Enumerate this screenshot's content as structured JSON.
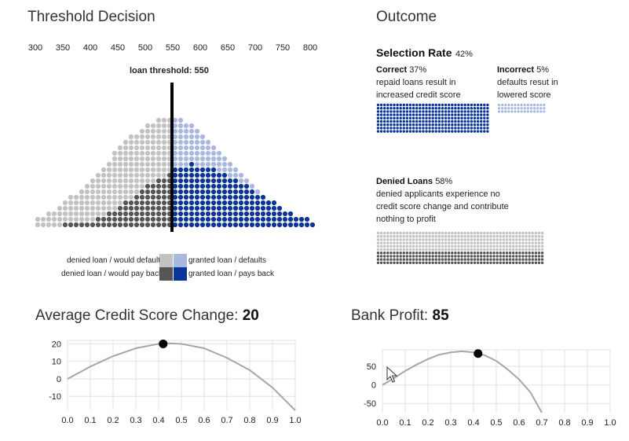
{
  "threshold_panel": {
    "title": "Threshold Decision",
    "axis_ticks": [
      "300",
      "350",
      "400",
      "450",
      "500",
      "550",
      "600",
      "650",
      "700",
      "750",
      "800"
    ],
    "threshold_label": "loan threshold: 550",
    "threshold_value": 550,
    "legend": {
      "denied_default": "denied loan / would default",
      "denied_payback": "denied loan / would pay back",
      "granted_default": "granted loan / defaults",
      "granted_payback": "granted loan / pays back"
    }
  },
  "colors": {
    "denied_default": "#c2c2c2",
    "denied_payback": "#555555",
    "granted_default": "#a9b8e0",
    "granted_payback": "#0a3596",
    "curve": "#a6a6a6",
    "grid": "#e2e2e2"
  },
  "outcome": {
    "title": "Outcome",
    "selection_rate_label": "Selection Rate",
    "selection_rate_value": "42%",
    "correct_label": "Correct",
    "correct_value": "37%",
    "correct_desc_1": "repaid loans result in",
    "correct_desc_2": "increased credit score",
    "incorrect_label": "Incorrect",
    "incorrect_value": "5%",
    "incorrect_desc_1": "defaults resut in",
    "incorrect_desc_2": "lowered score",
    "denied_label": "Denied Loans",
    "denied_value": "58%",
    "denied_desc_1": "denied applicants experience no",
    "denied_desc_2": "credit score change and contribute",
    "denied_desc_3": "nothing to profit"
  },
  "credit_chart": {
    "title_label": "Average Credit Score Change: ",
    "title_value": "20",
    "marker": 0.42
  },
  "profit_chart": {
    "title_label": "Bank Profit: ",
    "title_value": "85",
    "marker": 0.42
  },
  "chart_data": [
    {
      "type": "line",
      "title": "Average Credit Score Change: 20",
      "xlabel": "",
      "ylabel": "",
      "xlim": [
        0,
        1
      ],
      "ylim": [
        -18,
        22
      ],
      "x_ticks": [
        "0.0",
        "0.1",
        "0.2",
        "0.3",
        "0.4",
        "0.5",
        "0.6",
        "0.7",
        "0.8",
        "0.9",
        "1.0"
      ],
      "y_ticks": [
        "20",
        "10",
        "0",
        "-10"
      ],
      "x": [
        0.0,
        0.1,
        0.2,
        0.3,
        0.4,
        0.45,
        0.5,
        0.6,
        0.7,
        0.8,
        0.9,
        1.0
      ],
      "y": [
        0,
        7,
        13,
        17.5,
        20,
        20.3,
        20,
        17.5,
        12,
        5,
        -5,
        -18
      ],
      "marker": {
        "x": 0.42,
        "y": 20
      }
    },
    {
      "type": "line",
      "title": "Bank Profit: 85",
      "xlabel": "",
      "ylabel": "",
      "xlim": [
        0,
        1
      ],
      "ylim": [
        -75,
        95
      ],
      "x_ticks": [
        "0.0",
        "0.1",
        "0.2",
        "0.3",
        "0.4",
        "0.5",
        "0.6",
        "0.7",
        "0.8",
        "0.9",
        "1.0"
      ],
      "y_ticks": [
        "50",
        "0",
        "-50"
      ],
      "x": [
        0.0,
        0.05,
        0.1,
        0.15,
        0.2,
        0.25,
        0.3,
        0.35,
        0.4,
        0.45,
        0.5,
        0.55,
        0.6,
        0.65,
        0.7
      ],
      "y": [
        0,
        18,
        38,
        55,
        70,
        82,
        88,
        91,
        88,
        80,
        65,
        42,
        15,
        -20,
        -75
      ],
      "marker": {
        "x": 0.42,
        "y": 85
      }
    }
  ]
}
